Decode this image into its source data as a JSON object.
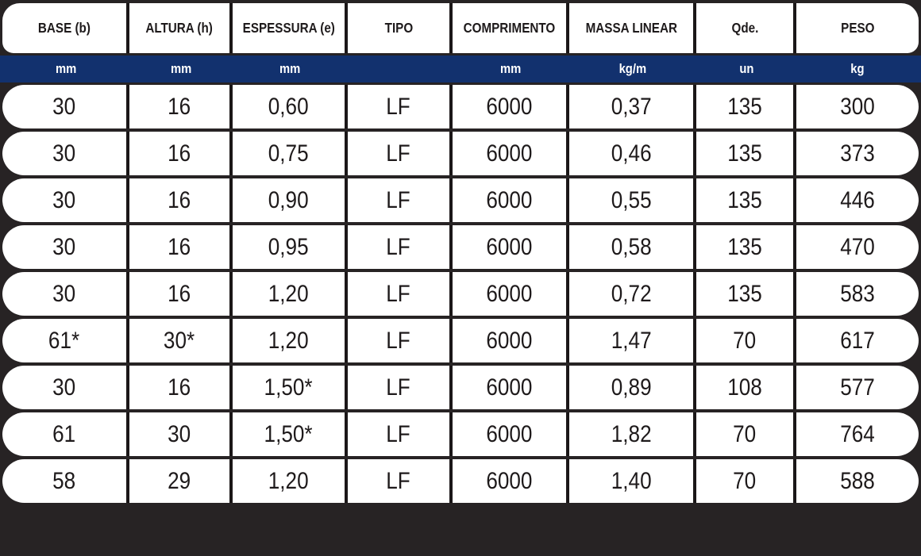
{
  "chart_data": {
    "type": "table",
    "columns": [
      {
        "label": "BASE (b)",
        "unit": "mm"
      },
      {
        "label": "ALTURA (h)",
        "unit": "mm"
      },
      {
        "label": "ESPESSURA (e)",
        "unit": "mm"
      },
      {
        "label": "TIPO",
        "unit": ""
      },
      {
        "label": "COMPRIMENTO",
        "unit": "mm"
      },
      {
        "label": "MASSA LINEAR",
        "unit": "kg/m"
      },
      {
        "label": "Qde.",
        "unit": "un"
      },
      {
        "label": "PESO",
        "unit": "kg"
      }
    ],
    "rows": [
      [
        "30",
        "16",
        "0,60",
        "LF",
        "6000",
        "0,37",
        "135",
        "300"
      ],
      [
        "30",
        "16",
        "0,75",
        "LF",
        "6000",
        "0,46",
        "135",
        "373"
      ],
      [
        "30",
        "16",
        "0,90",
        "LF",
        "6000",
        "0,55",
        "135",
        "446"
      ],
      [
        "30",
        "16",
        "0,95",
        "LF",
        "6000",
        "0,58",
        "135",
        "470"
      ],
      [
        "30",
        "16",
        "1,20",
        "LF",
        "6000",
        "0,72",
        "135",
        "583"
      ],
      [
        "61*",
        "30*",
        "1,20",
        "LF",
        "6000",
        "1,47",
        "70",
        "617"
      ],
      [
        "30",
        "16",
        "1,50*",
        "LF",
        "6000",
        "0,89",
        "108",
        "577"
      ],
      [
        "61",
        "30",
        "1,50*",
        "LF",
        "6000",
        "1,82",
        "70",
        "764"
      ],
      [
        "58",
        "29",
        "1,20",
        "LF",
        "6000",
        "1,40",
        "70",
        "588"
      ]
    ]
  },
  "colors": {
    "background": "#272324",
    "row_background": "#ffffff",
    "units_band": "#12316e",
    "separator": "#1b1718",
    "header_text": "#1e1a1b",
    "units_text": "#ffffff",
    "cell_text": "#1e1a1b"
  }
}
